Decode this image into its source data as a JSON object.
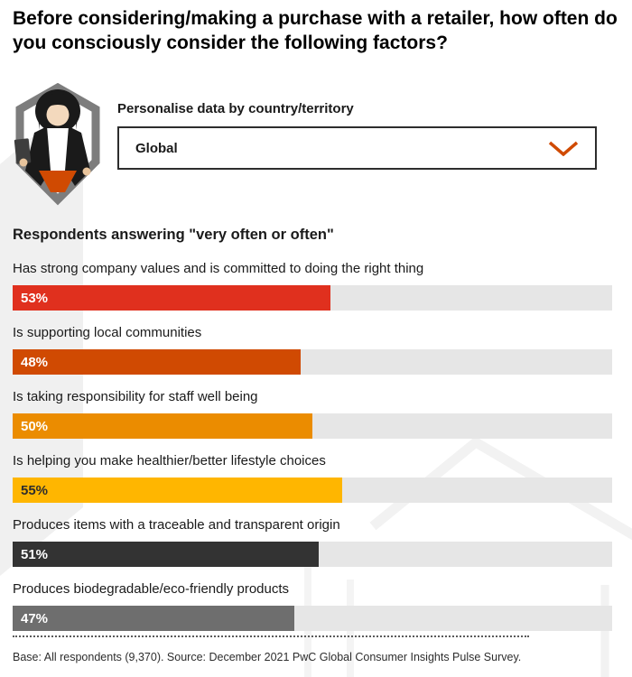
{
  "title": "Before considering/making a purchase with a retailer, how often do you consciously consider the following factors?",
  "personalise": {
    "label": "Personalise data by country/territory",
    "selected_value": "Global"
  },
  "subtitle": "Respondents answering \"very often or often\"",
  "chart_data": {
    "type": "bar",
    "orientation": "horizontal",
    "title": "Respondents answering \"very often or often\"",
    "xlim": [
      0,
      100
    ],
    "grid": false,
    "categories": [
      "Has strong company values and is committed to doing the right thing",
      "Is supporting local communities",
      "Is taking responsibility for staff well being",
      "Is helping you make healthier/better lifestyle choices",
      "Produces items with a traceable and transparent origin",
      "Produces biodegradable/eco-friendly products"
    ],
    "values": [
      53,
      48,
      50,
      55,
      51,
      47
    ],
    "value_labels": [
      "53%",
      "48%",
      "50%",
      "55%",
      "51%",
      "47%"
    ],
    "bar_colors": [
      "#e0301e",
      "#d04a02",
      "#eb8c00",
      "#ffb600",
      "#333333",
      "#6e6e6e"
    ],
    "value_text_colors": [
      "#ffffff",
      "#ffffff",
      "#ffffff",
      "#2d2d2d",
      "#ffffff",
      "#ffffff"
    ],
    "track_color": "#e6e6e6"
  },
  "footer": "Base: All respondents (9,370). Source: December 2021 PwC Global Consumer Insights Pulse Survey.",
  "icons": {
    "persona": "person-with-tablet-in-hexagon",
    "dropdown_chevron": "chevron-down"
  },
  "colors": {
    "accent": "#d04a02",
    "hexagon_outline": "#7d7d7d",
    "watermark": "#f0f0f0",
    "watermark_line": "#f2f2f2"
  }
}
